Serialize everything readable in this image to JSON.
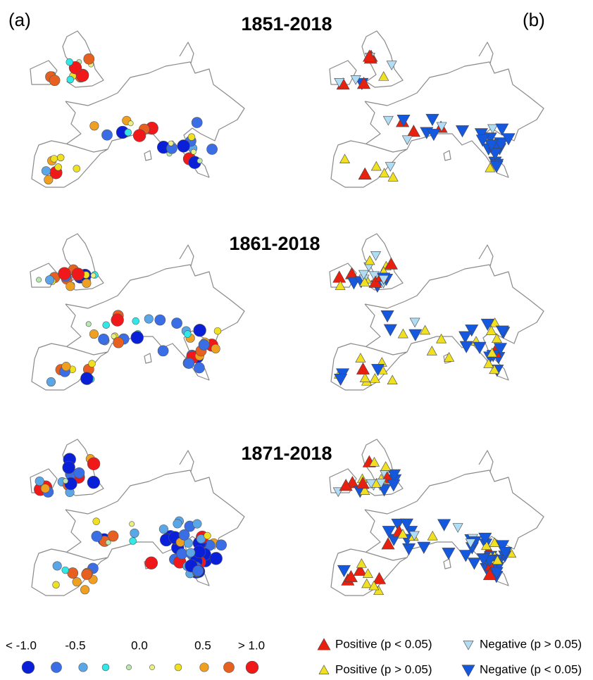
{
  "panel_labels": [
    "(a)",
    "(b)"
  ],
  "periods": [
    "1851-2018",
    "1861-2018",
    "1871-2018"
  ],
  "legend_a": {
    "labels": [
      "< -1.0",
      "-0.5",
      "0.0",
      "0.5",
      "> 1.0"
    ],
    "colors": [
      "#0a20d8",
      "#3a6ee6",
      "#5aa6e6",
      "#30e8e8",
      "#b8e8b0",
      "#e8f080",
      "#f0e020",
      "#f0a020",
      "#e86020",
      "#f01818"
    ]
  },
  "legend_b": [
    {
      "label": "Positive (p < 0.05)",
      "color": "#e82010",
      "dir": "up"
    },
    {
      "label": "Negative (p > 0.05)",
      "color": "#b0dcf4",
      "dir": "down"
    },
    {
      "label": "Positive (p > 0.05)",
      "color": "#f0e020",
      "dir": "up"
    },
    {
      "label": "Negative (p < 0.05)",
      "color": "#1458e0",
      "dir": "down"
    }
  ]
}
